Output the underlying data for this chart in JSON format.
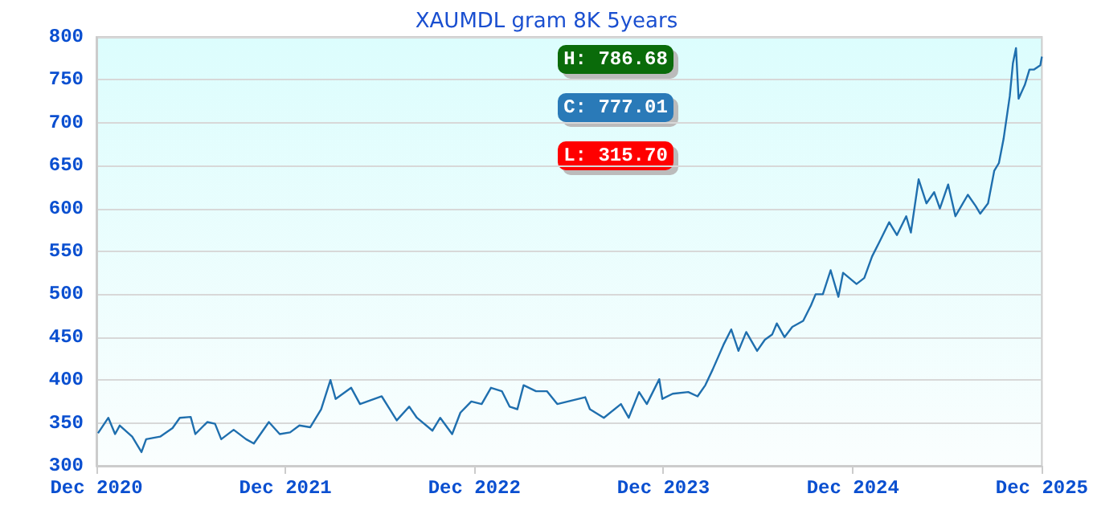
{
  "chart_data": {
    "type": "line",
    "title": "XAUMDL gram 8K 5years",
    "annotations": [
      "H: 786.68",
      "C: 777.01",
      "L: 315.70"
    ],
    "x": [
      "2020-12-04",
      "2020-12-24",
      "2021-01-06",
      "2021-01-15",
      "2021-02-08",
      "2021-02-26",
      "2021-03-07",
      "2021-04-03",
      "2021-04-27",
      "2021-05-11",
      "2021-06-01",
      "2021-06-10",
      "2021-07-03",
      "2021-07-18",
      "2021-07-30",
      "2021-08-23",
      "2021-09-16",
      "2021-10-01",
      "2021-10-30",
      "2021-11-20",
      "2021-12-10",
      "2021-12-28",
      "2022-01-18",
      "2022-02-08",
      "2022-02-26",
      "2022-03-08",
      "2022-04-07",
      "2022-04-24",
      "2022-06-05",
      "2022-07-04",
      "2022-07-28",
      "2022-08-12",
      "2022-09-11",
      "2022-09-26",
      "2022-10-19",
      "2022-11-04",
      "2022-11-25",
      "2022-12-15",
      "2023-01-02",
      "2023-01-23",
      "2023-02-07",
      "2023-02-22",
      "2023-03-06",
      "2023-03-30",
      "2023-04-20",
      "2023-05-10",
      "2023-07-03",
      "2023-07-12",
      "2023-08-08",
      "2023-09-10",
      "2023-09-25",
      "2023-10-15",
      "2023-10-30",
      "2023-11-23",
      "2023-11-29",
      "2023-12-19",
      "2024-01-18",
      "2024-02-05",
      "2024-02-20",
      "2024-03-05",
      "2024-03-26",
      "2024-04-10",
      "2024-04-24",
      "2024-05-09",
      "2024-05-30",
      "2024-06-14",
      "2024-06-28",
      "2024-07-07",
      "2024-07-22",
      "2024-08-06",
      "2024-08-27",
      "2024-09-11",
      "2024-09-20",
      "2024-10-04",
      "2024-10-19",
      "2024-11-03",
      "2024-11-12",
      "2024-12-08",
      "2024-12-23",
      "2025-01-07",
      "2025-01-22",
      "2025-02-09",
      "2025-02-24",
      "2025-03-14",
      "2025-03-23",
      "2025-04-07",
      "2025-04-22",
      "2025-05-07",
      "2025-05-18",
      "2025-06-03",
      "2025-06-17",
      "2025-07-11",
      "2025-07-26",
      "2025-08-04",
      "2025-08-19",
      "2025-08-31",
      "2025-09-09",
      "2025-09-18",
      "2025-09-30",
      "2025-10-06",
      "2025-10-12",
      "2025-10-17",
      "2025-10-29",
      "2025-11-07",
      "2025-11-16",
      "2025-11-28",
      "2025-12-01"
    ],
    "series": [
      {
        "color": "#1f6fae",
        "values": [
          338,
          356,
          337,
          347,
          334,
          316,
          331,
          334,
          344,
          356,
          357,
          337,
          351,
          349,
          331,
          342,
          331,
          326,
          351,
          337,
          339,
          347,
          345,
          366,
          400,
          378,
          391,
          372,
          381,
          353,
          369,
          356,
          341,
          356,
          337,
          362,
          375,
          372,
          391,
          387,
          369,
          366,
          394,
          387,
          387,
          372,
          380,
          366,
          356,
          372,
          356,
          386,
          372,
          401,
          378,
          384,
          386,
          381,
          394,
          412,
          441,
          459,
          434,
          456,
          434,
          447,
          453,
          466,
          450,
          462,
          469,
          487,
          500,
          500,
          528,
          497,
          525,
          512,
          519,
          544,
          562,
          584,
          569,
          591,
          572,
          634,
          606,
          619,
          600,
          628,
          591,
          616,
          603,
          594,
          606,
          644,
          653,
          681,
          731,
          769,
          787,
          728,
          744,
          762,
          762,
          767,
          777
        ]
      }
    ],
    "xlim": [
      "2020-12-01",
      "2025-12-01"
    ],
    "xticks": [
      {
        "value": "2020-12-01",
        "label": "Dec 2020"
      },
      {
        "value": "2021-12-01",
        "label": "Dec 2021"
      },
      {
        "value": "2022-12-01",
        "label": "Dec 2022"
      },
      {
        "value": "2023-12-01",
        "label": "Dec 2023"
      },
      {
        "value": "2024-12-01",
        "label": "Dec 2024"
      },
      {
        "value": "2025-12-01",
        "label": "Dec 2025"
      }
    ],
    "ylim": [
      300,
      800
    ],
    "yticks": [
      300,
      350,
      400,
      450,
      500,
      550,
      600,
      650,
      700,
      750,
      800
    ],
    "grid": "y"
  }
}
